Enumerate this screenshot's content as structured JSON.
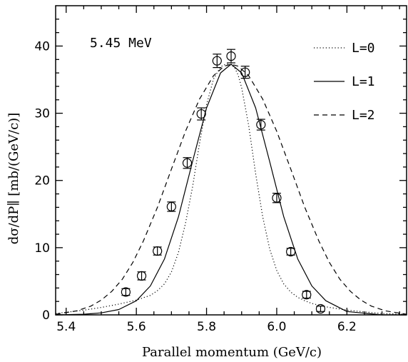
{
  "chart_data": {
    "type": "scatter",
    "xlabel": "Parallel momentum (GeV/c)",
    "ylabel": "dσ/dP∥ [mb/(GeV/c)]",
    "annotation": "5.45 MeV",
    "xlim": [
      5.37,
      6.37
    ],
    "ylim": [
      0,
      46
    ],
    "xticks": [
      5.4,
      5.6,
      5.8,
      6.0,
      6.2
    ],
    "xtick_labels": [
      "5.4",
      "5.6",
      "5.8",
      "6.0",
      "6.2"
    ],
    "yticks": [
      0,
      10,
      20,
      30,
      40
    ],
    "ytick_labels": [
      "0",
      "10",
      "20",
      "30",
      "40"
    ],
    "grid": false,
    "legend_position": "top-right",
    "data_points": {
      "x": [
        5.57,
        5.615,
        5.66,
        5.7,
        5.745,
        5.785,
        5.83,
        5.87,
        5.91,
        5.955,
        6.0,
        6.04,
        6.085,
        6.125
      ],
      "y": [
        3.4,
        5.8,
        9.5,
        16.1,
        22.6,
        29.9,
        37.8,
        38.5,
        36.1,
        28.3,
        17.4,
        9.4,
        3.0,
        0.9
      ],
      "yerr": [
        0.5,
        0.6,
        0.6,
        0.7,
        0.8,
        0.9,
        1.0,
        1.0,
        0.9,
        0.8,
        0.7,
        0.5,
        0.5,
        0.4
      ]
    },
    "series": [
      {
        "name": "L=0",
        "style": "dotted",
        "x": [
          5.37,
          5.45,
          5.5,
          5.55,
          5.6,
          5.64,
          5.66,
          5.68,
          5.7,
          5.72,
          5.74,
          5.76,
          5.78,
          5.8,
          5.82,
          5.84,
          5.85,
          5.86,
          5.87,
          5.88,
          5.89,
          5.9,
          5.92,
          5.94,
          5.96,
          5.98,
          6.0,
          6.02,
          6.04,
          6.06,
          6.08,
          6.1,
          6.14,
          6.2,
          6.3,
          6.37
        ],
        "y": [
          0.2,
          0.7,
          1.1,
          1.6,
          2.2,
          2.9,
          3.6,
          4.6,
          6.4,
          9.3,
          13.6,
          19.0,
          25.5,
          31.3,
          35.1,
          36.9,
          37.2,
          37.3,
          37.2,
          36.8,
          35.7,
          33.8,
          28.2,
          21.0,
          14.6,
          9.8,
          6.6,
          4.6,
          3.4,
          2.6,
          2.1,
          1.7,
          1.2,
          0.7,
          0.2,
          0.1
        ]
      },
      {
        "name": "L=1",
        "style": "solid",
        "x": [
          5.37,
          5.45,
          5.5,
          5.55,
          5.6,
          5.64,
          5.68,
          5.72,
          5.76,
          5.8,
          5.84,
          5.87,
          5.9,
          5.94,
          5.98,
          6.02,
          6.06,
          6.1,
          6.14,
          6.2,
          6.3,
          6.37
        ],
        "y": [
          0.0,
          0.1,
          0.3,
          0.8,
          2.1,
          4.3,
          8.3,
          14.6,
          22.8,
          30.8,
          36.0,
          37.3,
          36.0,
          30.8,
          22.8,
          14.6,
          8.3,
          4.3,
          2.1,
          0.5,
          0.0,
          0.0
        ]
      },
      {
        "name": "L=2",
        "style": "dashed",
        "x": [
          5.37,
          5.43,
          5.47,
          5.5,
          5.53,
          5.56,
          5.59,
          5.62,
          5.66,
          5.7,
          5.74,
          5.78,
          5.82,
          5.85,
          5.87,
          5.89,
          5.92,
          5.96,
          6.0,
          6.04,
          6.08,
          6.12,
          6.15,
          6.18,
          6.21,
          6.24,
          6.27,
          6.31,
          6.37
        ],
        "y": [
          0.1,
          0.6,
          1.3,
          2.2,
          3.5,
          5.3,
          7.8,
          11.0,
          16.0,
          21.7,
          27.3,
          32.1,
          35.6,
          37.0,
          37.3,
          37.0,
          35.6,
          32.1,
          27.3,
          21.7,
          16.0,
          11.0,
          7.8,
          5.3,
          3.5,
          2.2,
          1.3,
          0.6,
          0.1
        ]
      }
    ]
  }
}
